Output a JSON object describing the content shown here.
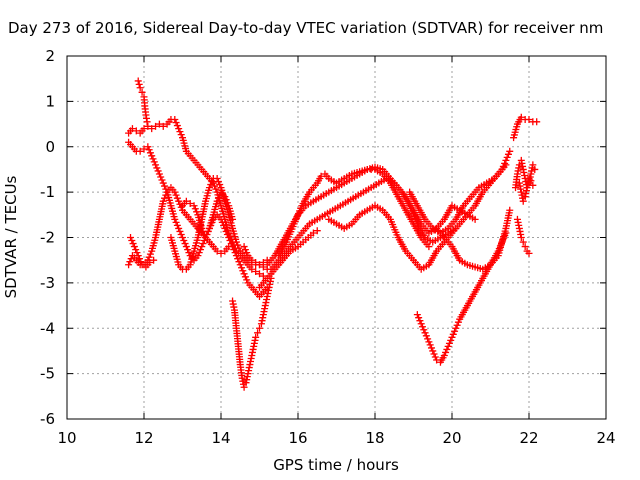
{
  "chart_data": {
    "type": "scatter",
    "title": "Day 273 of 2016, Sidereal Day-to-day VTEC variation (SDTVAR) for receiver nm",
    "xlabel": "GPS time / hours",
    "ylabel": "SDTVAR / TECUs",
    "xlim": [
      10,
      24
    ],
    "ylim": [
      -6,
      2
    ],
    "xticks": [
      "10",
      "12",
      "14",
      "16",
      "18",
      "20",
      "22",
      "24"
    ],
    "yticks": [
      "2",
      "1",
      "0",
      "-1",
      "-2",
      "-3",
      "-4",
      "-5",
      "-6"
    ],
    "grid": true,
    "marker": "plus",
    "color": "#ff0000",
    "series": [
      {
        "x": [
          11.85,
          11.9,
          11.95,
          12.0,
          12.02,
          12.05,
          12.08
        ],
        "y": [
          1.45,
          1.3,
          1.2,
          1.1,
          0.9,
          0.7,
          0.55
        ]
      },
      {
        "x": [
          11.6,
          11.7,
          11.8,
          11.9,
          12.0,
          12.1,
          12.2,
          12.3,
          12.4,
          12.5,
          12.6,
          12.7,
          12.8,
          12.9,
          13.0,
          13.1,
          13.2,
          13.3,
          13.4,
          13.5,
          13.6,
          13.7,
          13.8,
          13.9,
          14.0,
          14.1,
          14.2,
          14.3,
          14.4,
          14.5,
          14.6,
          14.7,
          14.8,
          14.9,
          15.0,
          15.1
        ],
        "y": [
          0.3,
          0.4,
          0.35,
          0.3,
          0.4,
          0.45,
          0.4,
          0.45,
          0.5,
          0.45,
          0.5,
          0.6,
          0.6,
          0.4,
          0.2,
          -0.1,
          -0.2,
          -0.3,
          -0.4,
          -0.5,
          -0.6,
          -0.7,
          -0.8,
          -1.0,
          -1.3,
          -1.6,
          -1.9,
          -2.1,
          -2.3,
          -2.4,
          -2.5,
          -2.6,
          -2.7,
          -2.75,
          -2.8,
          -2.85
        ]
      },
      {
        "x": [
          11.6,
          11.7,
          11.8,
          11.9,
          12.0,
          12.1,
          12.2,
          12.3,
          12.4,
          12.5,
          12.6,
          12.7,
          12.8,
          12.9,
          13.0,
          13.1,
          13.2,
          13.3,
          13.4,
          13.5,
          13.6,
          13.7,
          13.8,
          13.9,
          14.0,
          14.1,
          14.2,
          14.3,
          14.4,
          14.5,
          14.6,
          14.7,
          14.8,
          14.9,
          15.0,
          15.1,
          15.2
        ],
        "y": [
          0.1,
          0.0,
          -0.1,
          -0.1,
          -0.05,
          0.0,
          -0.2,
          -0.4,
          -0.6,
          -0.8,
          -1.0,
          -1.3,
          -1.6,
          -1.8,
          -2.0,
          -2.2,
          -2.4,
          -2.5,
          -2.4,
          -2.2,
          -2.0,
          -1.8,
          -1.6,
          -1.5,
          -1.6,
          -1.8,
          -2.0,
          -2.2,
          -2.4,
          -2.6,
          -2.8,
          -3.0,
          -3.1,
          -3.2,
          -3.3,
          -3.2,
          -3.1
        ]
      },
      {
        "x": [
          11.6,
          11.7,
          11.8,
          11.9,
          12.0,
          12.1,
          12.2,
          12.3,
          12.4,
          12.5,
          12.6,
          12.7,
          12.8,
          12.9,
          13.0,
          13.1,
          13.2,
          13.3,
          13.4,
          13.5,
          13.6,
          13.7,
          13.8,
          13.9,
          14.0,
          14.1,
          14.2
        ],
        "y": [
          -2.6,
          -2.4,
          -2.5,
          -2.6,
          -2.6,
          -2.5,
          -2.3,
          -2.0,
          -1.6,
          -1.2,
          -1.0,
          -0.9,
          -1.0,
          -1.2,
          -1.4,
          -1.5,
          -1.6,
          -1.7,
          -1.8,
          -1.9,
          -2.0,
          -2.1,
          -2.2,
          -2.3,
          -2.35,
          -2.3,
          -2.2
        ]
      },
      {
        "x": [
          11.65,
          11.75,
          11.85,
          11.95,
          12.05,
          12.15,
          12.25
        ],
        "y": [
          -2.0,
          -2.2,
          -2.4,
          -2.6,
          -2.65,
          -2.55,
          -2.5
        ]
      },
      {
        "x": [
          12.7,
          12.8,
          12.9,
          13.0,
          13.1,
          13.2,
          13.3,
          13.4,
          13.5,
          13.6,
          13.7,
          13.8,
          13.9,
          14.0,
          14.1,
          14.2,
          14.3,
          14.4,
          14.5,
          14.6,
          14.7,
          14.8,
          14.9,
          15.0,
          15.1,
          15.2
        ],
        "y": [
          -2.0,
          -2.3,
          -2.6,
          -2.7,
          -2.7,
          -2.6,
          -2.3,
          -2.0,
          -1.6,
          -1.2,
          -0.9,
          -0.7,
          -0.7,
          -0.9,
          -1.2,
          -1.5,
          -1.8,
          -2.1,
          -2.3,
          -2.4,
          -2.5,
          -2.55,
          -2.6,
          -2.6,
          -2.55,
          -2.5
        ]
      },
      {
        "x": [
          13.0,
          13.1,
          13.2,
          13.3,
          13.4,
          13.5,
          13.6,
          13.7,
          13.8,
          13.9,
          14.0,
          14.1,
          14.2,
          14.3
        ],
        "y": [
          -1.3,
          -1.2,
          -1.25,
          -1.3,
          -1.5,
          -1.8,
          -2.0,
          -1.8,
          -1.5,
          -1.2,
          -1.0,
          -1.1,
          -1.3,
          -1.6
        ]
      },
      {
        "x": [
          14.3,
          14.35,
          14.4,
          14.45,
          14.5,
          14.55,
          14.6,
          14.65,
          14.7,
          14.75,
          14.8,
          14.85,
          14.9,
          14.95,
          15.0,
          15.05,
          15.1,
          15.15,
          15.2,
          15.25,
          15.3
        ],
        "y": [
          -3.4,
          -3.6,
          -4.0,
          -4.4,
          -4.8,
          -5.1,
          -5.3,
          -5.2,
          -5.0,
          -4.8,
          -4.6,
          -4.4,
          -4.2,
          -4.1,
          -4.0,
          -3.9,
          -3.7,
          -3.5,
          -3.3,
          -3.1,
          -2.9
        ]
      },
      {
        "x": [
          15.0,
          15.2,
          15.4,
          15.6,
          15.8,
          16.0,
          16.2,
          16.4,
          16.5
        ],
        "y": [
          -3.1,
          -2.9,
          -2.7,
          -2.5,
          -2.3,
          -2.2,
          -2.05,
          -1.9,
          -1.85
        ]
      },
      {
        "x": [
          14.6,
          14.7,
          14.8,
          14.9,
          15.0,
          15.1,
          15.2
        ],
        "y": [
          -2.2,
          -2.4,
          -2.5,
          -2.55,
          -2.6,
          -2.65,
          -2.7
        ]
      },
      {
        "x": [
          15.2,
          15.4,
          15.6,
          15.8,
          16.0,
          16.2,
          16.4,
          16.6,
          16.8,
          17.0,
          17.2,
          17.4,
          17.6,
          17.8,
          18.0,
          18.2,
          18.4,
          18.6,
          18.8,
          19.0,
          19.2,
          19.4,
          19.6,
          19.8,
          20.0,
          20.2,
          20.4,
          20.6
        ],
        "y": [
          -2.6,
          -2.4,
          -2.1,
          -1.8,
          -1.5,
          -1.3,
          -1.2,
          -1.1,
          -1.0,
          -0.9,
          -0.8,
          -0.7,
          -0.6,
          -0.5,
          -0.45,
          -0.5,
          -0.7,
          -0.9,
          -1.1,
          -1.4,
          -1.7,
          -1.9,
          -1.8,
          -1.6,
          -1.3,
          -1.4,
          -1.5,
          -1.6
        ]
      },
      {
        "x": [
          15.3,
          15.5,
          15.7,
          15.9,
          16.1,
          16.3,
          16.5,
          16.7,
          16.9,
          17.1,
          17.3,
          17.5,
          17.7,
          17.9,
          18.1,
          18.3,
          18.5,
          18.7,
          18.9,
          19.1,
          19.3,
          19.5,
          19.7,
          19.9,
          20.1
        ],
        "y": [
          -2.7,
          -2.5,
          -2.3,
          -2.1,
          -1.9,
          -1.7,
          -1.6,
          -1.5,
          -1.4,
          -1.3,
          -1.2,
          -1.1,
          -1.0,
          -0.9,
          -0.8,
          -0.7,
          -0.8,
          -1.0,
          -1.3,
          -1.7,
          -2.0,
          -2.1,
          -2.0,
          -1.9,
          -1.8
        ]
      },
      {
        "x": [
          15.5,
          15.7,
          15.9,
          16.1,
          16.3,
          16.5,
          16.6,
          16.7,
          16.8,
          17.0,
          17.2,
          17.4,
          17.6,
          17.8,
          18.0,
          18.2,
          18.4,
          18.6,
          18.8,
          19.0,
          19.2,
          19.4
        ],
        "y": [
          -2.4,
          -2.1,
          -1.7,
          -1.3,
          -1.0,
          -0.8,
          -0.65,
          -0.6,
          -0.7,
          -0.8,
          -0.7,
          -0.6,
          -0.55,
          -0.5,
          -0.5,
          -0.6,
          -0.8,
          -1.1,
          -1.4,
          -1.7,
          -2.0,
          -2.2
        ]
      },
      {
        "x": [
          16.8,
          17.0,
          17.2,
          17.4,
          17.6,
          17.8,
          18.0,
          18.2,
          18.4,
          18.6,
          18.8,
          19.0,
          19.2,
          19.4,
          19.6,
          19.8,
          20.0,
          20.2,
          20.4,
          20.6,
          20.8,
          21.0,
          21.2,
          21.4
        ],
        "y": [
          -1.6,
          -1.7,
          -1.8,
          -1.7,
          -1.5,
          -1.4,
          -1.3,
          -1.4,
          -1.6,
          -2.0,
          -2.3,
          -2.5,
          -2.7,
          -2.6,
          -2.3,
          -2.1,
          -1.9,
          -1.7,
          -1.5,
          -1.3,
          -1.0,
          -0.8,
          -0.6,
          -0.4
        ]
      },
      {
        "x": [
          18.9,
          19.1,
          19.3,
          19.5,
          19.7,
          19.9,
          20.1,
          20.3,
          20.5,
          20.7,
          20.9,
          21.1,
          21.3,
          21.4,
          21.5
        ],
        "y": [
          -1.0,
          -1.3,
          -1.6,
          -1.8,
          -1.9,
          -1.8,
          -1.6,
          -1.3,
          -1.1,
          -0.9,
          -0.8,
          -0.7,
          -0.5,
          -0.3,
          -0.1
        ]
      },
      {
        "x": [
          19.1,
          19.2,
          19.3,
          19.4,
          19.5,
          19.6,
          19.7,
          19.8,
          19.9,
          20.0,
          20.1,
          20.2,
          20.4,
          20.6,
          20.8,
          21.0,
          21.2,
          21.4
        ],
        "y": [
          -3.7,
          -3.9,
          -4.1,
          -4.3,
          -4.5,
          -4.7,
          -4.75,
          -4.6,
          -4.4,
          -4.2,
          -4.0,
          -3.8,
          -3.5,
          -3.2,
          -2.9,
          -2.6,
          -2.3,
          -1.9
        ]
      },
      {
        "x": [
          19.6,
          19.8,
          20.0,
          20.2,
          20.4,
          20.6,
          20.8,
          21.0,
          21.2,
          21.3,
          21.4,
          21.5
        ],
        "y": [
          -1.8,
          -2.0,
          -2.2,
          -2.5,
          -2.6,
          -2.65,
          -2.7,
          -2.6,
          -2.4,
          -2.1,
          -1.8,
          -1.4
        ]
      },
      {
        "x": [
          21.6,
          21.7,
          21.8,
          21.9,
          22.0,
          22.1,
          22.2
        ],
        "y": [
          0.2,
          0.5,
          0.65,
          0.6,
          0.6,
          0.55,
          0.55
        ]
      },
      {
        "x": [
          21.65,
          21.7,
          21.75,
          21.8,
          21.85,
          21.9,
          21.95,
          22.0,
          22.05,
          22.1,
          22.15
        ],
        "y": [
          -0.9,
          -0.6,
          -0.4,
          -0.3,
          -0.5,
          -0.7,
          -0.9,
          -0.8,
          -0.6,
          -0.4,
          -0.5
        ]
      },
      {
        "x": [
          21.7,
          21.75,
          21.8,
          21.85,
          21.9,
          21.95,
          22.0
        ],
        "y": [
          -1.6,
          -1.8,
          -2.0,
          -2.1,
          -2.2,
          -2.3,
          -2.35
        ]
      },
      {
        "x": [
          21.75,
          21.8,
          21.85,
          21.9,
          21.95,
          22.0,
          22.05,
          22.1
        ],
        "y": [
          -0.8,
          -1.0,
          -1.2,
          -1.1,
          -0.9,
          -0.7,
          -0.75,
          -0.85
        ]
      }
    ]
  }
}
